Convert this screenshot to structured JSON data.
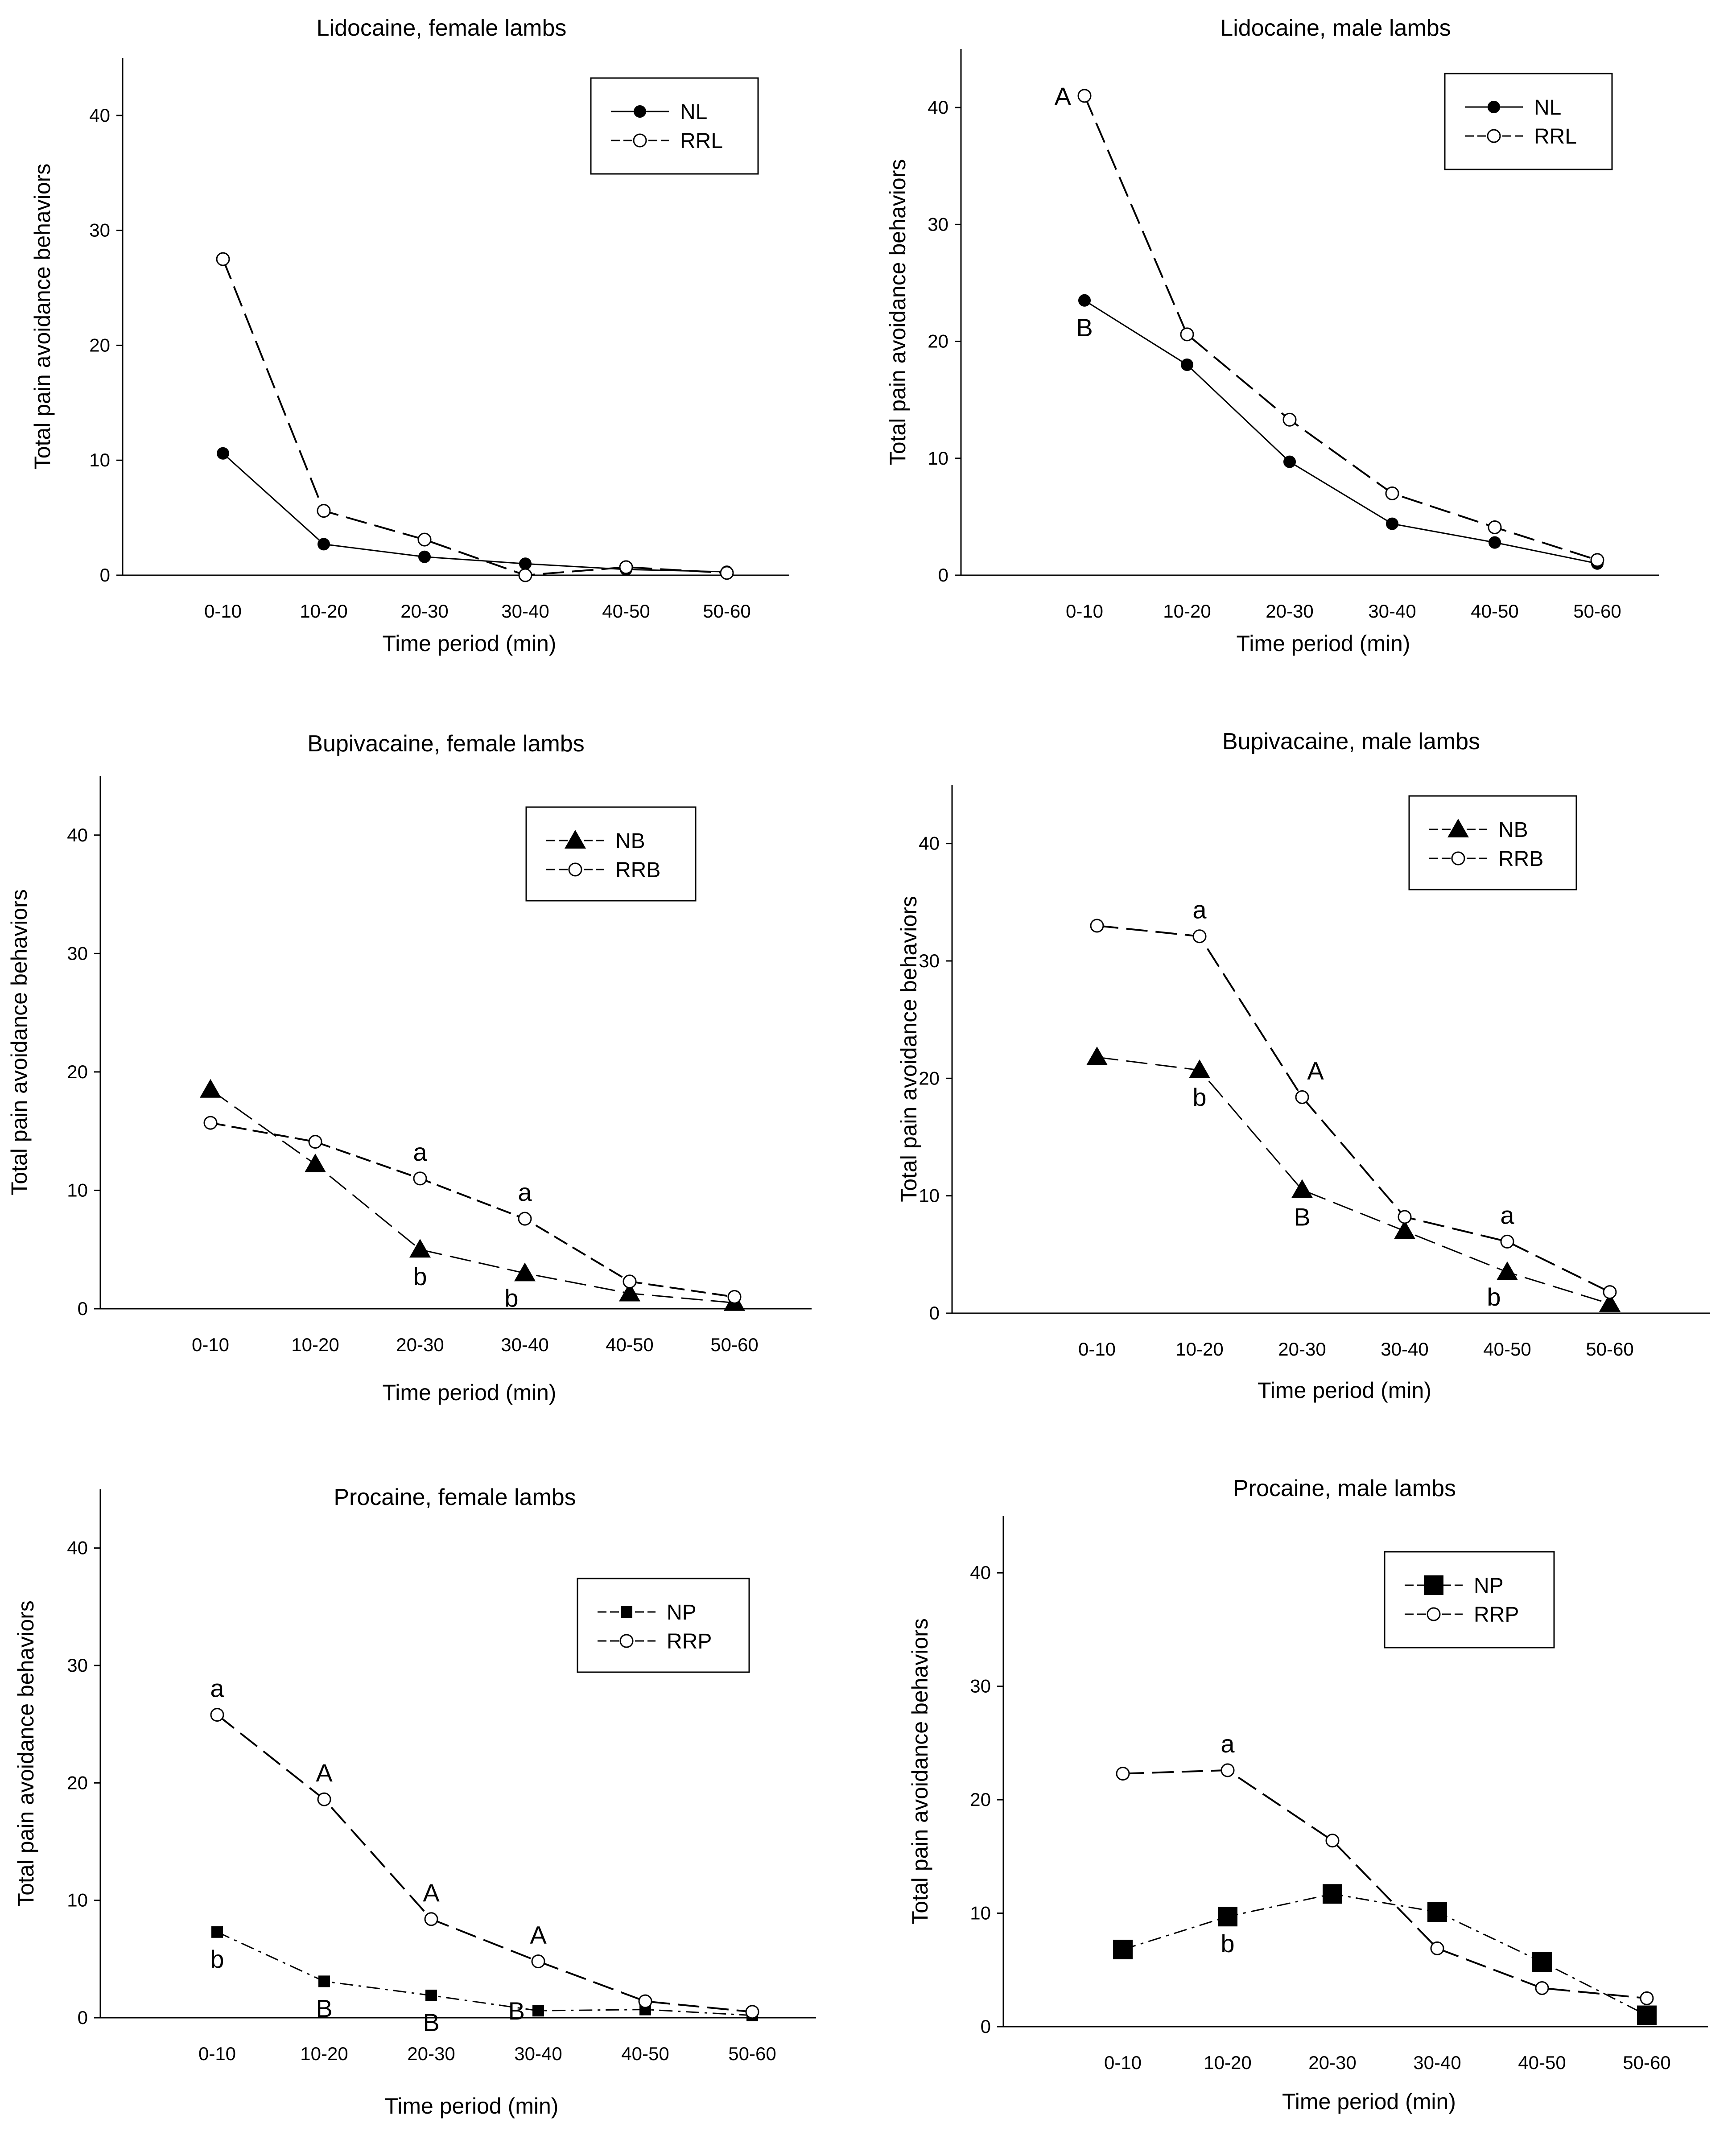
{
  "chart_data": [
    {
      "type": "line",
      "title": "Lidocaine, female lambs",
      "xlabel": "Time period (min)",
      "ylabel": "Total pain avoidance behaviors",
      "categories": [
        "0-10",
        "10-20",
        "20-30",
        "30-40",
        "40-50",
        "50-60"
      ],
      "yticks": [
        0,
        10,
        20,
        30,
        40
      ],
      "ylim": [
        0,
        45
      ],
      "series": [
        {
          "name": "NL",
          "marker": "filled-circle",
          "dash": "solid",
          "values": [
            10.6,
            2.7,
            1.6,
            1.0,
            0.5,
            0.3
          ]
        },
        {
          "name": "RRL",
          "marker": "open-circle",
          "dash": "long-dash",
          "values": [
            27.5,
            5.6,
            3.1,
            0.0,
            0.7,
            0.2
          ]
        }
      ],
      "annotations": []
    },
    {
      "type": "line",
      "title": "Lidocaine, male lambs",
      "xlabel": "Time period (min)",
      "ylabel": "Total pain avoidance behaviors",
      "categories": [
        "0-10",
        "10-20",
        "20-30",
        "30-40",
        "40-50",
        "50-60"
      ],
      "yticks": [
        0,
        10,
        20,
        30,
        40
      ],
      "ylim": [
        0,
        45
      ],
      "series": [
        {
          "name": "NL",
          "marker": "filled-circle",
          "dash": "solid",
          "values": [
            23.5,
            18.0,
            9.7,
            4.4,
            2.8,
            1.0
          ]
        },
        {
          "name": "RRL",
          "marker": "open-circle",
          "dash": "long-dash",
          "values": [
            41.0,
            20.6,
            13.3,
            7.0,
            4.1,
            1.3
          ]
        }
      ],
      "annotations": [
        {
          "text": "A",
          "series": 1,
          "index": 0,
          "pos": "left"
        },
        {
          "text": "B",
          "series": 0,
          "index": 0,
          "pos": "below"
        }
      ]
    },
    {
      "type": "line",
      "title": "Bupivacaine, female lambs",
      "xlabel": "Time period (min)",
      "ylabel": "Total pain avoidance behaviors",
      "categories": [
        "0-10",
        "10-20",
        "20-30",
        "30-40",
        "40-50",
        "50-60"
      ],
      "yticks": [
        0,
        10,
        20,
        30,
        40
      ],
      "ylim": [
        0,
        45
      ],
      "series": [
        {
          "name": "NB",
          "marker": "filled-triangle",
          "dash": "long-dash",
          "values": [
            18.5,
            12.2,
            5.0,
            3.0,
            1.3,
            0.5
          ]
        },
        {
          "name": "RRB",
          "marker": "open-circle",
          "dash": "dash",
          "values": [
            15.7,
            14.1,
            11.0,
            7.6,
            2.3,
            1.0
          ]
        }
      ],
      "annotations": [
        {
          "text": "a",
          "series": 1,
          "index": 2,
          "pos": "above"
        },
        {
          "text": "a",
          "series": 1,
          "index": 3,
          "pos": "above"
        },
        {
          "text": "b",
          "series": 0,
          "index": 2,
          "pos": "below"
        },
        {
          "text": "b",
          "series": 0,
          "index": 3,
          "pos": "below-left"
        }
      ]
    },
    {
      "type": "line",
      "title": "Bupivacaine, male lambs",
      "xlabel": "Time period (min)",
      "ylabel": "Total pain avoidance behaviors",
      "categories": [
        "0-10",
        "10-20",
        "20-30",
        "30-40",
        "40-50",
        "50-60"
      ],
      "yticks": [
        0,
        10,
        20,
        30,
        40
      ],
      "ylim": [
        0,
        45
      ],
      "series": [
        {
          "name": "NB",
          "marker": "filled-triangle",
          "dash": "long-dash",
          "values": [
            21.8,
            20.7,
            10.5,
            7.0,
            3.5,
            0.8
          ]
        },
        {
          "name": "RRB",
          "marker": "open-circle",
          "dash": "long-dash",
          "values": [
            33.0,
            32.1,
            18.4,
            8.2,
            6.1,
            1.8
          ]
        }
      ],
      "annotations": [
        {
          "text": "a",
          "series": 1,
          "index": 1,
          "pos": "above"
        },
        {
          "text": "A",
          "series": 1,
          "index": 2,
          "pos": "above-right"
        },
        {
          "text": "a",
          "series": 1,
          "index": 4,
          "pos": "above"
        },
        {
          "text": "b",
          "series": 0,
          "index": 1,
          "pos": "below"
        },
        {
          "text": "B",
          "series": 0,
          "index": 2,
          "pos": "below"
        },
        {
          "text": "b",
          "series": 0,
          "index": 4,
          "pos": "below-left"
        }
      ]
    },
    {
      "type": "line",
      "title": "Procaine, female lambs",
      "xlabel": "Time period (min)",
      "ylabel": "Total pain avoidance behaviors",
      "categories": [
        "0-10",
        "10-20",
        "20-30",
        "30-40",
        "40-50",
        "50-60"
      ],
      "yticks": [
        0,
        10,
        20,
        30,
        40
      ],
      "ylim": [
        0,
        45
      ],
      "series": [
        {
          "name": "NP",
          "marker": "filled-square-small",
          "dash": "dash-dot",
          "values": [
            7.3,
            3.1,
            1.9,
            0.6,
            0.7,
            0.2
          ]
        },
        {
          "name": "RRP",
          "marker": "open-circle",
          "dash": "long-dash",
          "values": [
            25.8,
            18.6,
            8.4,
            4.8,
            1.4,
            0.5
          ]
        }
      ],
      "annotations": [
        {
          "text": "a",
          "series": 1,
          "index": 0,
          "pos": "above"
        },
        {
          "text": "A",
          "series": 1,
          "index": 1,
          "pos": "above"
        },
        {
          "text": "A",
          "series": 1,
          "index": 2,
          "pos": "above"
        },
        {
          "text": "A",
          "series": 1,
          "index": 3,
          "pos": "above"
        },
        {
          "text": "b",
          "series": 0,
          "index": 0,
          "pos": "below"
        },
        {
          "text": "B",
          "series": 0,
          "index": 1,
          "pos": "below"
        },
        {
          "text": "B",
          "series": 0,
          "index": 2,
          "pos": "below"
        },
        {
          "text": "B",
          "series": 0,
          "index": 3,
          "pos": "left"
        }
      ]
    },
    {
      "type": "line",
      "title": "Procaine, male lambs",
      "xlabel": "Time period (min)",
      "ylabel": "Total pain avoidance behaviors",
      "categories": [
        "0-10",
        "10-20",
        "20-30",
        "30-40",
        "40-50",
        "50-60"
      ],
      "yticks": [
        0,
        10,
        20,
        30,
        40
      ],
      "ylim": [
        0,
        45
      ],
      "series": [
        {
          "name": "NP",
          "marker": "filled-square-large",
          "dash": "dash-dot",
          "values": [
            6.8,
            9.7,
            11.7,
            10.1,
            5.7,
            1.0
          ]
        },
        {
          "name": "RRP",
          "marker": "open-circle",
          "dash": "long-dash",
          "values": [
            22.3,
            22.6,
            16.4,
            6.9,
            3.4,
            2.5
          ]
        }
      ],
      "annotations": [
        {
          "text": "a",
          "series": 1,
          "index": 1,
          "pos": "above"
        },
        {
          "text": "b",
          "series": 0,
          "index": 1,
          "pos": "below"
        }
      ]
    }
  ]
}
